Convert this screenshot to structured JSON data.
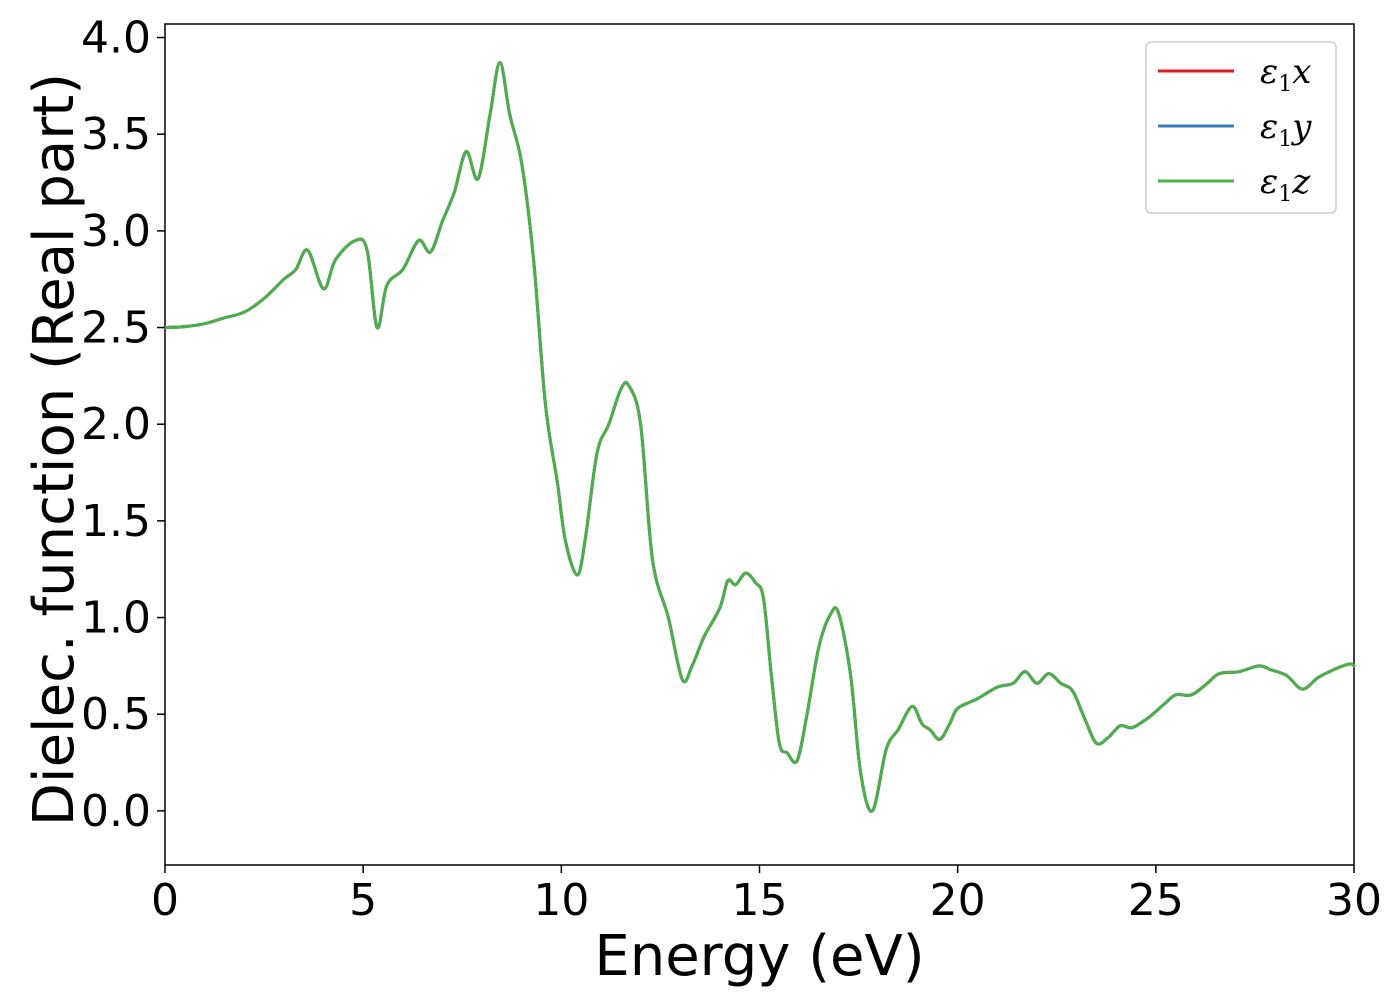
{
  "chart_data": {
    "type": "line",
    "xlabel": "Energy (eV)",
    "ylabel": "Dielec. function (Real part)",
    "xlim": [
      0,
      30
    ],
    "ylim": [
      -0.28,
      4.07
    ],
    "xticks": [
      0,
      5,
      10,
      15,
      20,
      25,
      30
    ],
    "yticks": [
      0.0,
      0.5,
      1.0,
      1.5,
      2.0,
      2.5,
      3.0,
      3.5,
      4.0
    ],
    "xtick_labels": [
      "0",
      "5",
      "10",
      "15",
      "20",
      "25",
      "30"
    ],
    "ytick_labels": [
      "0.0",
      "0.5",
      "1.0",
      "1.5",
      "2.0",
      "2.5",
      "3.0",
      "3.5",
      "4.0"
    ],
    "grid": false,
    "legend_position": "top-right",
    "x": [
      0,
      0.5,
      1,
      1.5,
      2,
      2.5,
      3,
      3.3,
      3.6,
      4,
      4.3,
      4.8,
      5.1,
      5.35,
      5.6,
      6,
      6.4,
      6.7,
      7,
      7.3,
      7.6,
      7.9,
      8.2,
      8.45,
      8.7,
      9,
      9.3,
      9.6,
      9.9,
      10.1,
      10.4,
      10.6,
      10.9,
      11.2,
      11.5,
      11.7,
      12,
      12.3,
      12.7,
      13.05,
      13.3,
      13.6,
      14,
      14.2,
      14.4,
      14.65,
      14.9,
      15.1,
      15.3,
      15.5,
      15.7,
      15.95,
      16.2,
      16.5,
      16.8,
      17,
      17.3,
      17.55,
      17.85,
      18.2,
      18.5,
      18.85,
      19.1,
      19.3,
      19.55,
      19.8,
      20,
      20.5,
      21,
      21.4,
      21.7,
      22,
      22.3,
      22.6,
      22.9,
      23.2,
      23.5,
      23.8,
      24.1,
      24.4,
      24.8,
      25.2,
      25.5,
      25.9,
      26.3,
      26.6,
      27.1,
      27.6,
      27.9,
      28.3,
      28.7,
      29.1,
      29.6,
      29.9,
      30
    ],
    "series": [
      {
        "name": "ε1x",
        "color": "#e41a1c",
        "values": [
          2.5,
          2.505,
          2.52,
          2.55,
          2.58,
          2.65,
          2.75,
          2.8,
          2.9,
          2.7,
          2.85,
          2.95,
          2.9,
          2.5,
          2.72,
          2.8,
          2.95,
          2.89,
          3.05,
          3.2,
          3.41,
          3.27,
          3.6,
          3.87,
          3.6,
          3.35,
          2.85,
          2.1,
          1.7,
          1.4,
          1.22,
          1.4,
          1.85,
          2.0,
          2.18,
          2.2,
          2.0,
          1.3,
          1.0,
          0.68,
          0.75,
          0.9,
          1.05,
          1.19,
          1.17,
          1.23,
          1.18,
          1.1,
          0.7,
          0.35,
          0.3,
          0.26,
          0.5,
          0.85,
          1.02,
          1.02,
          0.7,
          0.2,
          0.0,
          0.32,
          0.42,
          0.54,
          0.45,
          0.42,
          0.37,
          0.45,
          0.53,
          0.58,
          0.64,
          0.66,
          0.72,
          0.66,
          0.71,
          0.66,
          0.62,
          0.48,
          0.35,
          0.38,
          0.44,
          0.43,
          0.48,
          0.55,
          0.6,
          0.6,
          0.66,
          0.71,
          0.72,
          0.75,
          0.73,
          0.7,
          0.63,
          0.69,
          0.74,
          0.76,
          0.75
        ]
      },
      {
        "name": "ε1y",
        "color": "#377eb8",
        "values": [
          2.5,
          2.505,
          2.52,
          2.55,
          2.58,
          2.65,
          2.75,
          2.8,
          2.9,
          2.7,
          2.85,
          2.95,
          2.9,
          2.5,
          2.72,
          2.8,
          2.95,
          2.89,
          3.05,
          3.2,
          3.41,
          3.27,
          3.6,
          3.87,
          3.6,
          3.35,
          2.85,
          2.1,
          1.7,
          1.4,
          1.22,
          1.4,
          1.85,
          2.0,
          2.18,
          2.2,
          2.0,
          1.3,
          1.0,
          0.68,
          0.75,
          0.9,
          1.05,
          1.19,
          1.17,
          1.23,
          1.18,
          1.1,
          0.7,
          0.35,
          0.3,
          0.26,
          0.5,
          0.85,
          1.02,
          1.02,
          0.7,
          0.2,
          0.0,
          0.32,
          0.42,
          0.54,
          0.45,
          0.42,
          0.37,
          0.45,
          0.53,
          0.58,
          0.64,
          0.66,
          0.72,
          0.66,
          0.71,
          0.66,
          0.62,
          0.48,
          0.35,
          0.38,
          0.44,
          0.43,
          0.48,
          0.55,
          0.6,
          0.6,
          0.66,
          0.71,
          0.72,
          0.75,
          0.73,
          0.7,
          0.63,
          0.69,
          0.74,
          0.76,
          0.75
        ]
      },
      {
        "name": "ε1z",
        "color": "#4daf4a",
        "values": [
          2.5,
          2.505,
          2.52,
          2.55,
          2.58,
          2.65,
          2.75,
          2.8,
          2.9,
          2.7,
          2.85,
          2.95,
          2.9,
          2.5,
          2.72,
          2.8,
          2.95,
          2.89,
          3.05,
          3.2,
          3.41,
          3.27,
          3.6,
          3.87,
          3.6,
          3.35,
          2.85,
          2.1,
          1.7,
          1.4,
          1.22,
          1.4,
          1.85,
          2.0,
          2.18,
          2.2,
          2.0,
          1.3,
          1.0,
          0.68,
          0.75,
          0.9,
          1.05,
          1.19,
          1.17,
          1.23,
          1.18,
          1.1,
          0.7,
          0.35,
          0.3,
          0.26,
          0.5,
          0.85,
          1.02,
          1.02,
          0.7,
          0.2,
          0.0,
          0.32,
          0.42,
          0.54,
          0.45,
          0.42,
          0.37,
          0.45,
          0.53,
          0.58,
          0.64,
          0.66,
          0.72,
          0.66,
          0.71,
          0.66,
          0.62,
          0.48,
          0.35,
          0.38,
          0.44,
          0.43,
          0.48,
          0.55,
          0.6,
          0.6,
          0.66,
          0.71,
          0.72,
          0.75,
          0.73,
          0.7,
          0.63,
          0.69,
          0.74,
          0.76,
          0.75
        ]
      }
    ],
    "legend": [
      {
        "symbol": "ε",
        "sub": "1",
        "axis": "x"
      },
      {
        "symbol": "ε",
        "sub": "1",
        "axis": "y"
      },
      {
        "symbol": "ε",
        "sub": "1",
        "axis": "z"
      }
    ]
  }
}
